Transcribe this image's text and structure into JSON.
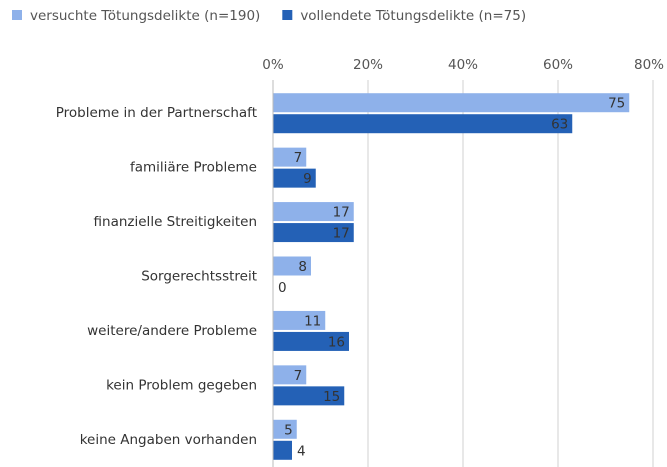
{
  "chart_data": {
    "type": "bar",
    "orientation": "horizontal",
    "categories": [
      "Probleme in der Partnerschaft",
      "familiäre Probleme",
      "finanzielle Streitigkeiten",
      "Sorgerechtsstreit",
      "weitere/andere Probleme",
      "kein Problem gegeben",
      "keine Angaben vorhanden"
    ],
    "series": [
      {
        "name": "versuchte Tötungsdelikte (n=190)",
        "color": "#8eb1ea",
        "values": [
          75,
          7,
          17,
          8,
          11,
          7,
          5
        ]
      },
      {
        "name": "vollendete Tötungsdelikte (n=75)",
        "color": "#2461b6",
        "values": [
          63,
          9,
          17,
          0,
          16,
          15,
          4
        ]
      }
    ],
    "xlim": [
      0,
      80
    ],
    "xticks": [
      {
        "value": 0,
        "label": "0%"
      },
      {
        "value": 20,
        "label": "20%"
      },
      {
        "value": 40,
        "label": "40%"
      },
      {
        "value": 60,
        "label": "60%"
      },
      {
        "value": 80,
        "label": "80%"
      }
    ],
    "grid": true,
    "legend": "top-left"
  }
}
